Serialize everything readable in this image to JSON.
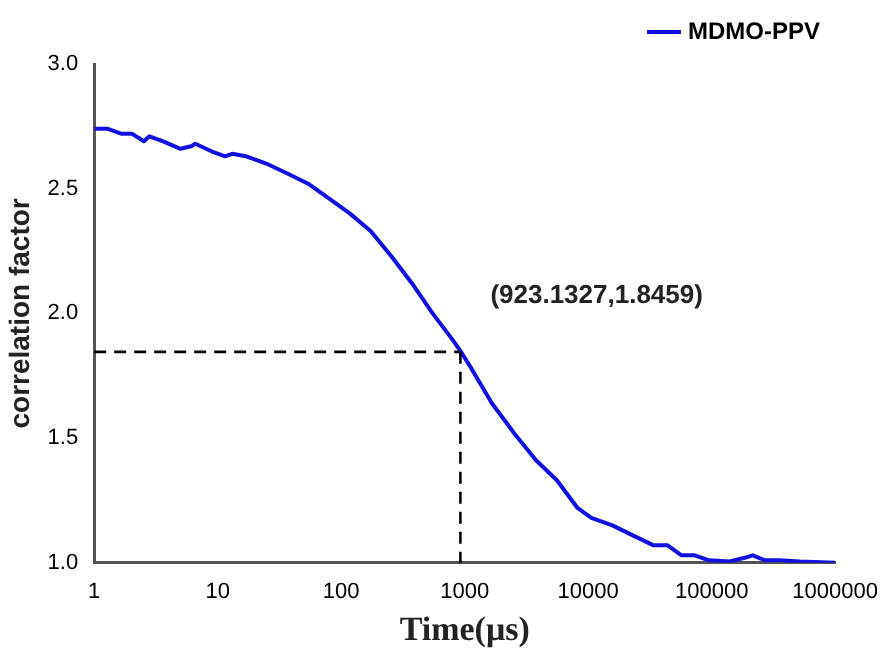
{
  "chart_data": {
    "type": "line",
    "xlabel": "Time(μs)",
    "ylabel": "correlation factor",
    "log": "x",
    "xlim": [
      1,
      1000000
    ],
    "xticks": [
      1,
      10,
      100,
      1000,
      10000,
      100000,
      1000000
    ],
    "ylim": [
      1,
      3
    ],
    "yticks": [
      {
        "value": 1,
        "label": "1.0"
      },
      {
        "value": 1.5,
        "label": "1.5"
      },
      {
        "value": 2,
        "label": "2.0"
      },
      {
        "value": 2.5,
        "label": "2.5"
      },
      {
        "value": 3,
        "label": "3.0"
      }
    ],
    "grid": false,
    "legend": "top right",
    "marker": "none",
    "line_style": "solid",
    "series": [
      {
        "name": "MDMO-PPV",
        "color": "#1010e0",
        "x": [
          1,
          1.29,
          1.67,
          2.03,
          2.53,
          2.8,
          3.62,
          5,
          6.1,
          6.6,
          8.9,
          11.5,
          13.1,
          17,
          25,
          37,
          54,
          80,
          118,
          173,
          254,
          375,
          550,
          810,
          923.1327,
          1130,
          1660,
          2600,
          3800,
          5600,
          8200,
          10600,
          15700,
          23000,
          33800,
          44000,
          57000,
          73000,
          95000,
          140000,
          185000,
          215000,
          270000,
          350000,
          520000,
          1000000
        ],
        "values": [
          2.74,
          2.74,
          2.72,
          2.72,
          2.69,
          2.71,
          2.69,
          2.66,
          2.67,
          2.68,
          2.65,
          2.63,
          2.64,
          2.63,
          2.6,
          2.56,
          2.52,
          2.46,
          2.4,
          2.33,
          2.23,
          2.12,
          2,
          1.89,
          1.85,
          1.78,
          1.64,
          1.51,
          1.41,
          1.33,
          1.22,
          1.18,
          1.15,
          1.11,
          1.07,
          1.07,
          1.03,
          1.03,
          1.01,
          1.005,
          1.02,
          1.03,
          1.01,
          1.01,
          1.005,
          1
        ]
      }
    ],
    "ref_lines": [
      {
        "axis": "y",
        "value": 1.8459,
        "color": "#000000",
        "line_style": "dashed"
      },
      {
        "axis": "x",
        "value": 923.1327,
        "color": "#000000",
        "line_style": "dashed"
      }
    ],
    "annotations": [
      {
        "text": "(923.1327,1.8459)",
        "x": 923.1327,
        "y": 1.8459
      }
    ]
  }
}
